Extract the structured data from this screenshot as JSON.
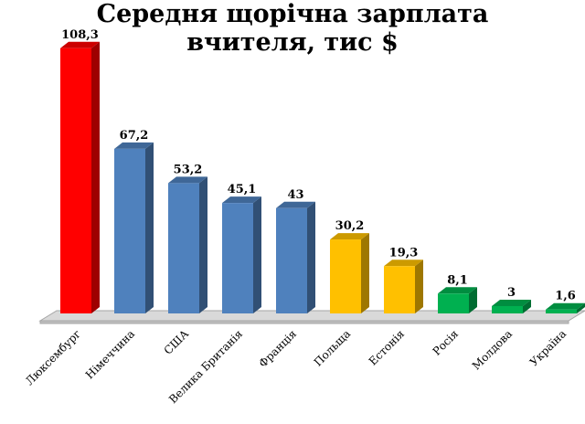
{
  "chart_data": {
    "type": "bar",
    "title_lines": [
      "Середня щорічна зарплата",
      "вчителя, тис $"
    ],
    "categories": [
      "Люксембург",
      "Німеччина",
      "США",
      "Велика Британія",
      "Франція",
      "Польща",
      "Естонія",
      "Росія",
      "Молдова",
      "Україна"
    ],
    "values": [
      108.3,
      67.2,
      53.2,
      45.1,
      43,
      30.2,
      19.3,
      8.1,
      3,
      1.6
    ],
    "value_labels": [
      "108,3",
      "67,2",
      "53,2",
      "45,1",
      "43",
      "30,2",
      "19,3",
      "8,1",
      "3",
      "1,6"
    ],
    "bar_colors": [
      "#ff0000",
      "#4f81bd",
      "#4f81bd",
      "#4f81bd",
      "#4f81bd",
      "#ffc000",
      "#ffc000",
      "#00b050",
      "#00b050",
      "#00b050"
    ],
    "xlabel": "",
    "ylabel": "",
    "ylim": [
      0,
      110
    ],
    "grid": false,
    "legend": "none"
  }
}
